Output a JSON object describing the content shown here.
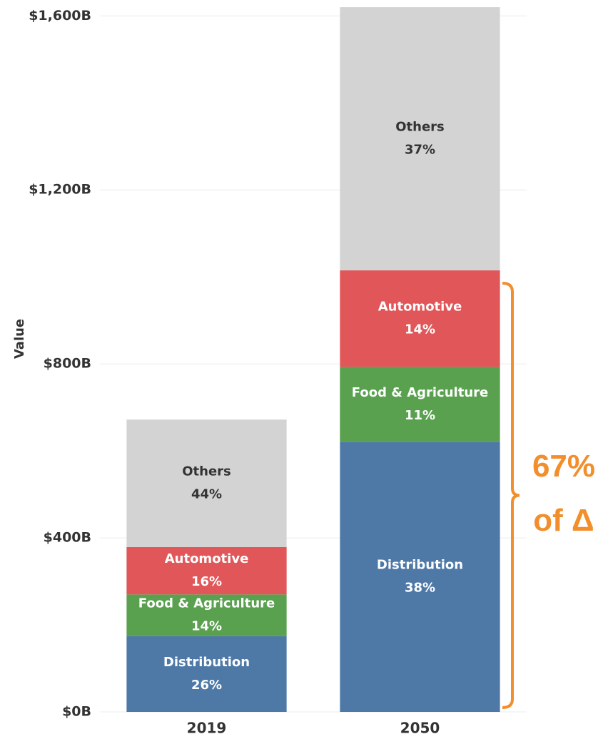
{
  "chart_data": {
    "type": "stacked_bar",
    "y_label": "Value",
    "categories": [
      "2019",
      "2050"
    ],
    "series": [
      {
        "name": "Distribution",
        "color": "#4e79a7",
        "text_color": "#ffffff",
        "values": [
          174,
          621
        ],
        "percent_labels": [
          "26%",
          "38%"
        ]
      },
      {
        "name": "Food & Agriculture",
        "color": "#59a14f",
        "text_color": "#ffffff",
        "values": [
          96,
          172
        ],
        "percent_labels": [
          "14%",
          "11%"
        ]
      },
      {
        "name": "Automotive",
        "color": "#e15759",
        "text_color": "#ffffff",
        "values": [
          109,
          222
        ],
        "percent_labels": [
          "16%",
          "14%"
        ]
      },
      {
        "name": "Others",
        "color": "#d3d3d3",
        "text_color": "#333333",
        "values": [
          293,
          605
        ],
        "percent_labels": [
          "44%",
          "37%"
        ]
      }
    ],
    "ylim": [
      0,
      1630
    ],
    "yticks": [
      {
        "value": 0,
        "label": "$0B"
      },
      {
        "value": 400,
        "label": "$400B"
      },
      {
        "value": 800,
        "label": "$800B"
      },
      {
        "value": 1200,
        "label": "$1,200B"
      },
      {
        "value": 1600,
        "label": "$1,600B"
      }
    ],
    "grid": true,
    "annotation": {
      "lines": [
        "67%",
        "of Δ"
      ],
      "color": "#f28e2b"
    }
  }
}
